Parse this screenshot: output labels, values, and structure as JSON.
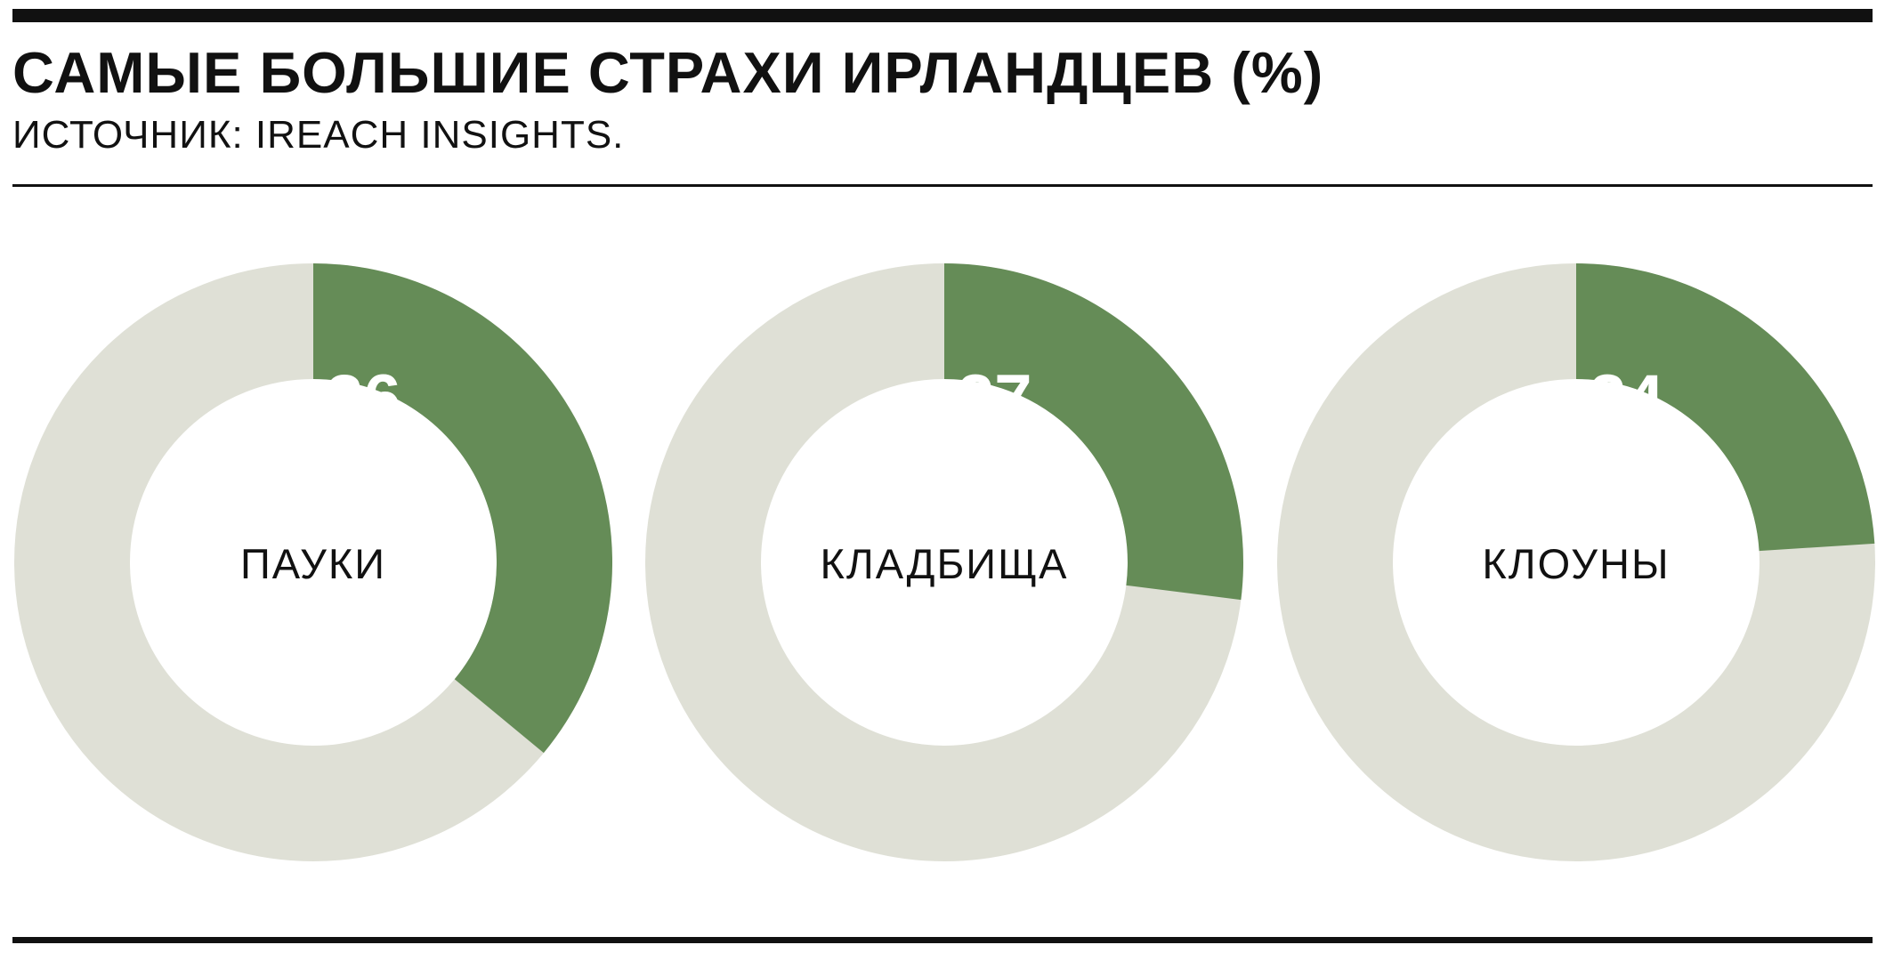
{
  "header": {
    "title": "САМЫЕ БОЛЬШИЕ СТРАХИ ИРЛАНДЦЕВ (%)",
    "source": "ИСТОЧНИК: IREACH INSIGHTS."
  },
  "colors": {
    "value": "#658c57",
    "rest": "#dfe0d6",
    "rule": "#111111"
  },
  "chart_data": [
    {
      "type": "pie",
      "label": "ПАУКИ",
      "value": 36,
      "max": 100
    },
    {
      "type": "pie",
      "label": "КЛАДБИЩА",
      "value": 27,
      "max": 100
    },
    {
      "type": "pie",
      "label": "КЛОУНЫ",
      "value": 24,
      "max": 100
    }
  ]
}
